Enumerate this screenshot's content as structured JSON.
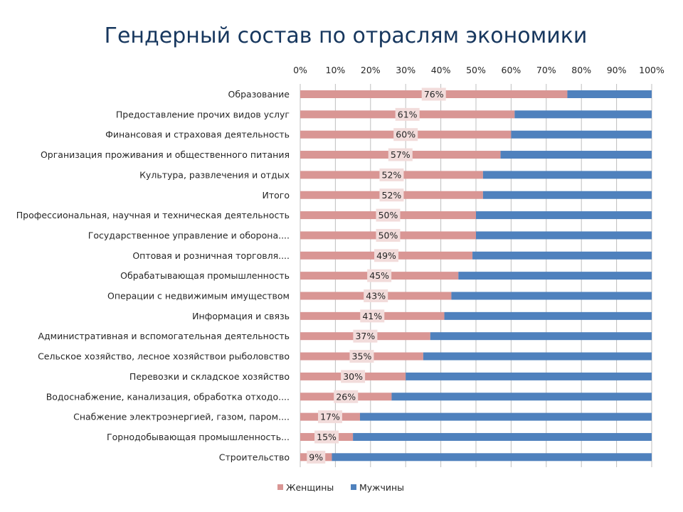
{
  "chart_data": {
    "type": "bar",
    "orientation": "horizontal",
    "stacked": "percent",
    "title": "Гендерный состав по отраслям экономики",
    "x_axis_position": "top",
    "xlim": [
      0,
      100
    ],
    "x_ticks": [
      "0%",
      "10%",
      "20%",
      "30%",
      "40%",
      "50%",
      "60%",
      "70%",
      "80%",
      "90%",
      "100%"
    ],
    "grid": true,
    "legend_position": "bottom",
    "categories": [
      "Образование",
      "Предоставление прочих видов услуг",
      "Финансовая и страховая деятельность",
      "Организация проживания и общественного питания",
      "Культура, развлечения и отдых",
      "Итого",
      "Профессиональная, научная и техническая деятельность",
      "Государственное управление и оборона....",
      "Оптовая и розничная торговля....",
      "Обрабатывающая промышленность",
      "Операции с недвижимым имуществом",
      "Информация и связь",
      "Административная и вспомогательная деятельность",
      "Сельское хозяйство, лесное хозяйствои рыболовство",
      "Перевозки и складское хозяйство",
      "Водоснабжение, канализация, обработка отходо....",
      "Снабжение электроэнергией, газом, паром....",
      "Горнодобывающая промышленность...",
      "Строительство"
    ],
    "series": [
      {
        "name": "Женщины",
        "color": "#d99694",
        "values": [
          76,
          61,
          60,
          57,
          52,
          52,
          50,
          50,
          49,
          45,
          43,
          41,
          37,
          35,
          30,
          26,
          17,
          15,
          9
        ],
        "data_labels": [
          "76%",
          "61%",
          "60%",
          "57%",
          "52%",
          "52%",
          "50%",
          "50%",
          "49%",
          "45%",
          "43%",
          "41%",
          "37%",
          "35%",
          "30%",
          "26%",
          "17%",
          "15%",
          "9%"
        ]
      },
      {
        "name": "Мужчины",
        "color": "#4f81bd",
        "values": [
          24,
          39,
          40,
          43,
          48,
          48,
          50,
          50,
          51,
          55,
          57,
          59,
          63,
          65,
          70,
          74,
          83,
          85,
          91
        ]
      }
    ]
  }
}
